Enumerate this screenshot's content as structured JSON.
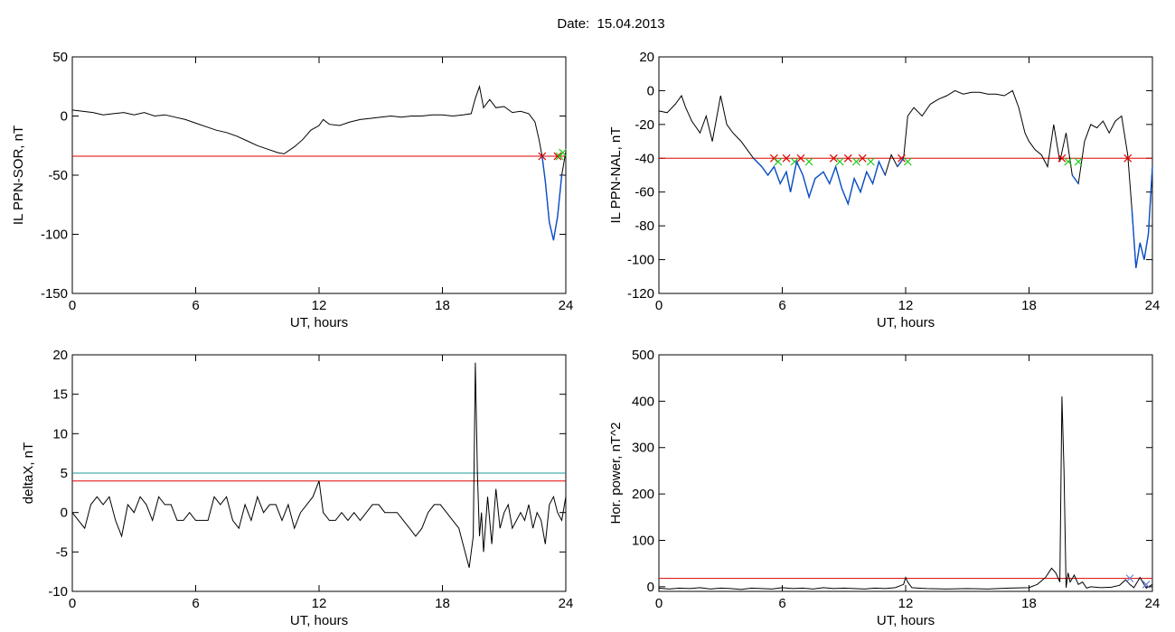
{
  "header": {
    "title": "Date:  15.04.2013"
  },
  "colors": {
    "trace": "#000000",
    "threshold": "#e00000",
    "below": "#0b4fc8",
    "teal": "#1a9a9a",
    "green": "#22cc22"
  },
  "chart_data": [
    {
      "id": "sor",
      "type": "line",
      "title": "",
      "xlabel": "UT, hours",
      "ylabel": "IL PPN-SOR, nT",
      "xlim": [
        0,
        24
      ],
      "ylim": [
        -150,
        50
      ],
      "xticks": [
        0,
        6,
        12,
        18,
        24
      ],
      "yticks": [
        -150,
        -100,
        -50,
        0,
        50
      ],
      "threshold": -34,
      "series": [
        {
          "x": [
            0,
            0.5,
            1,
            1.5,
            2,
            2.5,
            3,
            3.5,
            4,
            4.5,
            5,
            5.5,
            6,
            6.5,
            7,
            7.5,
            8,
            8.5,
            9,
            9.5,
            10,
            10.3,
            10.8,
            11.2,
            11.6,
            12,
            12.2,
            12.5,
            13,
            13.5,
            14,
            14.5,
            15,
            15.5,
            16,
            16.5,
            17,
            17.5,
            18,
            18.5,
            19,
            19.4,
            19.6,
            19.8,
            20,
            20.3,
            20.6,
            21,
            21.4,
            21.8,
            22.2,
            22.5,
            22.7,
            22.85,
            23,
            23.2,
            23.4,
            23.6,
            23.8,
            24
          ],
          "y": [
            5,
            4,
            3,
            1,
            2,
            3,
            1,
            3,
            0,
            1,
            -1,
            -3,
            -6,
            -9,
            -12,
            -14,
            -17,
            -21,
            -25,
            -28,
            -31,
            -32,
            -26,
            -20,
            -12,
            -8,
            -3,
            -7,
            -8,
            -5,
            -3,
            -2,
            -1,
            0,
            -1,
            0,
            0,
            1,
            1,
            0,
            1,
            2,
            15,
            25,
            7,
            14,
            7,
            8,
            3,
            4,
            2,
            -5,
            -20,
            -34,
            -55,
            -90,
            -105,
            -85,
            -50,
            -30
          ]
        }
      ],
      "markers": [
        {
          "x": 22.85,
          "y": -34,
          "color": "#e00000"
        },
        {
          "x": 23.6,
          "y": -34,
          "color": "#e00000"
        },
        {
          "x": 23.7,
          "y": -34,
          "color": "#22cc22"
        },
        {
          "x": 23.85,
          "y": -31,
          "color": "#22cc22"
        }
      ]
    },
    {
      "id": "nal",
      "type": "line",
      "title": "",
      "xlabel": "UT, hours",
      "ylabel": "IL PPN-NAL, nT",
      "xlim": [
        0,
        24
      ],
      "ylim": [
        -120,
        20
      ],
      "xticks": [
        0,
        6,
        12,
        18,
        24
      ],
      "yticks": [
        -120,
        -100,
        -80,
        -60,
        -40,
        -20,
        0,
        20
      ],
      "threshold": -40,
      "series": [
        {
          "x": [
            0,
            0.4,
            0.8,
            1.1,
            1.3,
            1.6,
            2,
            2.3,
            2.6,
            3,
            3.3,
            3.6,
            4,
            4.3,
            4.6,
            5,
            5.3,
            5.6,
            5.9,
            6.2,
            6.4,
            6.7,
            7,
            7.3,
            7.6,
            8,
            8.3,
            8.6,
            8.9,
            9.2,
            9.5,
            9.8,
            10.1,
            10.4,
            10.7,
            11,
            11.3,
            11.6,
            11.9,
            12.1,
            12.4,
            12.8,
            13.2,
            13.6,
            14,
            14.4,
            14.8,
            15.2,
            15.6,
            16,
            16.4,
            16.8,
            17.2,
            17.5,
            17.8,
            18,
            18.3,
            18.6,
            18.9,
            19.2,
            19.5,
            19.8,
            20.1,
            20.4,
            20.7,
            21,
            21.3,
            21.6,
            21.9,
            22.2,
            22.5,
            22.8,
            23,
            23.2,
            23.4,
            23.6,
            23.8,
            24
          ],
          "y": [
            -12,
            -13,
            -8,
            -3,
            -10,
            -18,
            -25,
            -15,
            -30,
            -3,
            -20,
            -25,
            -30,
            -35,
            -40,
            -45,
            -50,
            -45,
            -55,
            -48,
            -60,
            -42,
            -50,
            -63,
            -52,
            -48,
            -55,
            -45,
            -58,
            -67,
            -52,
            -60,
            -48,
            -55,
            -42,
            -50,
            -38,
            -45,
            -40,
            -15,
            -10,
            -15,
            -8,
            -5,
            -3,
            0,
            -2,
            -1,
            -1,
            -2,
            -2,
            -3,
            0,
            -10,
            -25,
            -30,
            -35,
            -38,
            -45,
            -20,
            -42,
            -25,
            -50,
            -55,
            -30,
            -20,
            -22,
            -18,
            -25,
            -18,
            -15,
            -38,
            -70,
            -105,
            -90,
            -100,
            -85,
            -45
          ]
        }
      ],
      "markers": [
        {
          "x": 5.6,
          "y": -40,
          "color": "#e00000"
        },
        {
          "x": 5.8,
          "y": -42,
          "color": "#22cc22"
        },
        {
          "x": 6.2,
          "y": -40,
          "color": "#e00000"
        },
        {
          "x": 6.6,
          "y": -42,
          "color": "#22cc22"
        },
        {
          "x": 6.9,
          "y": -40,
          "color": "#e00000"
        },
        {
          "x": 7.3,
          "y": -42,
          "color": "#22cc22"
        },
        {
          "x": 8.5,
          "y": -40,
          "color": "#e00000"
        },
        {
          "x": 8.8,
          "y": -42,
          "color": "#22cc22"
        },
        {
          "x": 9.2,
          "y": -40,
          "color": "#e00000"
        },
        {
          "x": 9.6,
          "y": -42,
          "color": "#22cc22"
        },
        {
          "x": 9.9,
          "y": -40,
          "color": "#e00000"
        },
        {
          "x": 10.3,
          "y": -42,
          "color": "#22cc22"
        },
        {
          "x": 11.8,
          "y": -40,
          "color": "#e00000"
        },
        {
          "x": 12.1,
          "y": -42,
          "color": "#22cc22"
        },
        {
          "x": 19.6,
          "y": -40,
          "color": "#e00000"
        },
        {
          "x": 19.9,
          "y": -42,
          "color": "#22cc22"
        },
        {
          "x": 20.4,
          "y": -42,
          "color": "#22cc22"
        },
        {
          "x": 22.8,
          "y": -40,
          "color": "#e00000"
        }
      ]
    },
    {
      "id": "deltax",
      "type": "line",
      "title": "",
      "xlabel": "UT, hours",
      "ylabel": "deltaX, nT",
      "xlim": [
        0,
        24
      ],
      "ylim": [
        -10,
        20
      ],
      "xticks": [
        0,
        6,
        12,
        18,
        24
      ],
      "yticks": [
        -10,
        -5,
        0,
        5,
        10,
        15,
        20
      ],
      "threshold": 4,
      "threshold2": 5,
      "series": [
        {
          "x": [
            0,
            0.3,
            0.6,
            0.9,
            1.2,
            1.5,
            1.8,
            2.1,
            2.4,
            2.7,
            3,
            3.3,
            3.6,
            3.9,
            4.2,
            4.5,
            4.8,
            5.1,
            5.4,
            5.7,
            6,
            6.3,
            6.6,
            6.9,
            7.2,
            7.5,
            7.8,
            8.1,
            8.4,
            8.7,
            9,
            9.3,
            9.6,
            9.9,
            10.2,
            10.5,
            10.8,
            11.1,
            11.4,
            11.7,
            12,
            12.2,
            12.5,
            12.8,
            13.1,
            13.4,
            13.7,
            14,
            14.3,
            14.6,
            14.9,
            15.2,
            15.5,
            15.8,
            16.1,
            16.4,
            16.7,
            17,
            17.3,
            17.6,
            17.9,
            18.2,
            18.5,
            18.8,
            19.1,
            19.3,
            19.5,
            19.6,
            19.7,
            19.8,
            19.9,
            20,
            20.2,
            20.4,
            20.6,
            20.8,
            21,
            21.2,
            21.4,
            21.6,
            21.8,
            22,
            22.2,
            22.4,
            22.6,
            22.8,
            23,
            23.2,
            23.4,
            23.6,
            23.8,
            24
          ],
          "y": [
            0,
            -1,
            -2,
            1,
            2,
            1,
            2,
            -1,
            -3,
            1,
            0,
            2,
            1,
            -1,
            2,
            1,
            1,
            -1,
            -1,
            0,
            -1,
            -1,
            -1,
            2,
            1,
            2,
            -1,
            -2,
            1,
            -1,
            2,
            0,
            1,
            1,
            -1,
            1,
            -2,
            0,
            1,
            2,
            4,
            0,
            -1,
            -1,
            0,
            -1,
            0,
            -1,
            0,
            1,
            1,
            0,
            0,
            0,
            -1,
            -2,
            -3,
            -2,
            0,
            1,
            1,
            0,
            -1,
            -2,
            -5,
            -7,
            -3,
            19,
            5,
            -3,
            0,
            -5,
            2,
            -4,
            3,
            -2,
            0,
            1,
            -2,
            -1,
            0,
            -1,
            1,
            -2,
            0,
            -1,
            -4,
            1,
            2,
            0,
            -1,
            2
          ]
        }
      ],
      "markers": []
    },
    {
      "id": "power",
      "type": "line",
      "title": "",
      "xlabel": "UT, hours",
      "ylabel": "Hor. power, nT^2",
      "xlim": [
        0,
        24
      ],
      "ylim": [
        -10,
        500
      ],
      "xticks": [
        0,
        6,
        12,
        18,
        24
      ],
      "yticks": [
        0,
        100,
        200,
        300,
        400,
        500
      ],
      "threshold": 18,
      "series": [
        {
          "x": [
            0,
            0.5,
            1,
            1.5,
            2,
            2.5,
            3,
            3.5,
            4,
            4.5,
            5,
            5.5,
            6,
            6.5,
            7,
            7.5,
            8,
            8.5,
            9,
            9.5,
            10,
            10.5,
            11,
            11.5,
            11.9,
            12,
            12.1,
            12.3,
            12.6,
            13,
            14,
            15,
            16,
            17,
            18,
            18.4,
            18.8,
            19.1,
            19.3,
            19.5,
            19.6,
            19.7,
            19.8,
            19.9,
            20,
            20.2,
            20.4,
            20.6,
            20.8,
            21,
            21.5,
            22,
            22.4,
            22.7,
            22.9,
            23.1,
            23.4,
            23.7,
            24
          ],
          "y": [
            -3,
            -5,
            -3,
            -4,
            -2,
            -5,
            -3,
            -4,
            -6,
            -3,
            -4,
            -5,
            -2,
            -4,
            -3,
            -5,
            -2,
            -4,
            -3,
            -4,
            -5,
            -3,
            -4,
            -2,
            5,
            20,
            10,
            -2,
            -3,
            -4,
            -5,
            -4,
            -5,
            -3,
            -2,
            5,
            20,
            40,
            30,
            10,
            410,
            250,
            -2,
            30,
            10,
            25,
            5,
            10,
            -3,
            0,
            -2,
            -1,
            3,
            15,
            5,
            -2,
            20,
            -3,
            5
          ]
        }
      ],
      "markers": [
        {
          "x": 22.9,
          "y": 18,
          "color": "#6a7fd8"
        },
        {
          "x": 23.7,
          "y": 5,
          "color": "#6a7fd8"
        }
      ]
    }
  ]
}
